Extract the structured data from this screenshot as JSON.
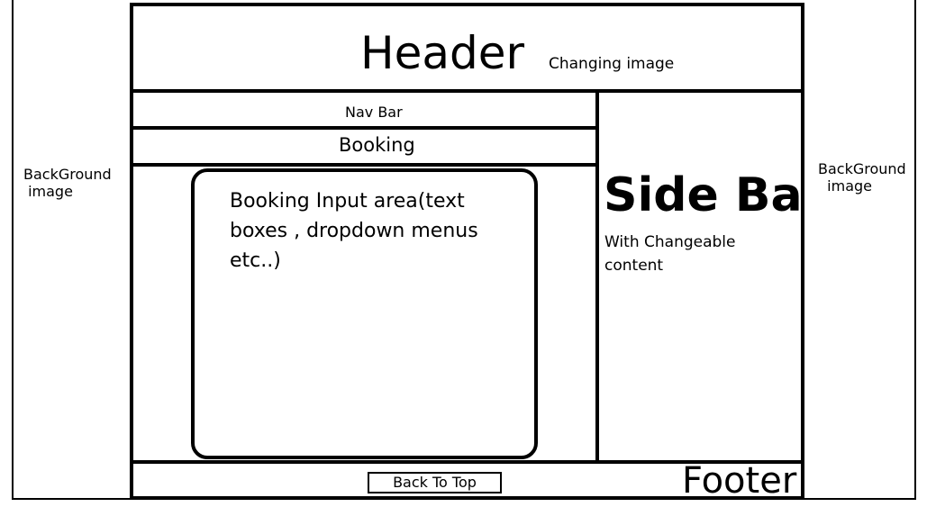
{
  "background": {
    "left_label": "BackGround\n image",
    "right_label": "BackGround\n  image"
  },
  "header": {
    "title": "Header",
    "subtitle": "Changing image"
  },
  "nav": {
    "label": "Nav Bar"
  },
  "booking": {
    "label": "Booking",
    "input_area_text": "Booking Input area(text boxes , dropdown menus etc..)"
  },
  "sidebar": {
    "title": "Side Bar",
    "subtitle": "With Changeable content"
  },
  "footer": {
    "label": "Footer",
    "back_to_top": "Back To Top"
  }
}
